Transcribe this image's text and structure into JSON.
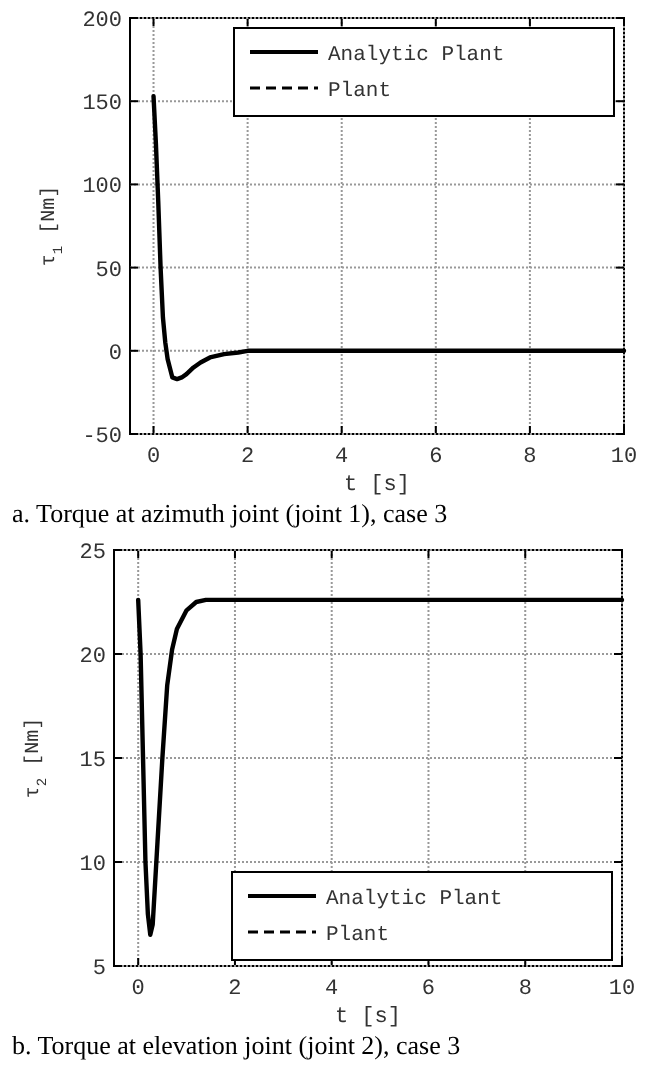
{
  "chart_data": [
    {
      "type": "line",
      "xlabel": "t  [s]",
      "ylabel": "τ$_{1}$  [Nm]",
      "xlim": [
        -0.5,
        10
      ],
      "ylim": [
        -50,
        200
      ],
      "xticks": [
        0,
        2,
        4,
        6,
        8,
        10
      ],
      "yticks": [
        -50,
        0,
        50,
        100,
        150,
        200
      ],
      "grid": true,
      "legend": "top right",
      "annotations": [
        "a. Torque at azimuth joint (joint 1), case 3"
      ],
      "x": [
        0,
        0.05,
        0.1,
        0.15,
        0.2,
        0.25,
        0.3,
        0.4,
        0.5,
        0.6,
        0.7,
        0.85,
        1,
        1.2,
        1.5,
        1.8,
        2,
        3,
        10
      ],
      "series": [
        {
          "name": "Analytic Plant",
          "color": "#000000",
          "line_style": "solid",
          "values": [
            153,
            125,
            90,
            50,
            20,
            5,
            -5,
            -16,
            -17,
            -16,
            -14,
            -10,
            -7,
            -4,
            -2,
            -1,
            0,
            0,
            0
          ]
        },
        {
          "name": "Plant",
          "color": "#000000",
          "line_style": "dashed",
          "values": [
            null,
            null,
            null,
            null,
            null,
            null,
            null,
            null,
            null,
            null,
            null,
            null,
            null,
            null,
            null,
            null,
            null,
            null,
            null
          ]
        }
      ]
    },
    {
      "type": "line",
      "xlabel": "t  [s]",
      "ylabel": "τ$_{2}$  [Nm]",
      "xlim": [
        -0.5,
        10
      ],
      "ylim": [
        5,
        25
      ],
      "xticks": [
        0,
        2,
        4,
        6,
        8,
        10
      ],
      "yticks": [
        5,
        10,
        15,
        20,
        25
      ],
      "grid": true,
      "legend": "bottom right",
      "annotations": [
        "b. Torque at elevation joint (joint 2), case 3"
      ],
      "x": [
        0,
        0.05,
        0.1,
        0.15,
        0.2,
        0.25,
        0.3,
        0.35,
        0.4,
        0.5,
        0.6,
        0.7,
        0.8,
        1,
        1.2,
        1.4,
        2,
        10
      ],
      "series": [
        {
          "name": "Analytic Plant",
          "color": "#000000",
          "line_style": "solid",
          "values": [
            22.6,
            20,
            15,
            10,
            7.5,
            6.5,
            7,
            9,
            11,
            15,
            18.5,
            20.2,
            21.2,
            22.1,
            22.5,
            22.6,
            22.6,
            22.6
          ]
        },
        {
          "name": "Plant",
          "color": "#000000",
          "line_style": "dashed",
          "values": [
            null,
            null,
            null,
            null,
            null,
            null,
            null,
            null,
            null,
            null,
            null,
            null,
            null,
            null,
            null,
            null,
            null,
            null
          ]
        }
      ]
    }
  ]
}
